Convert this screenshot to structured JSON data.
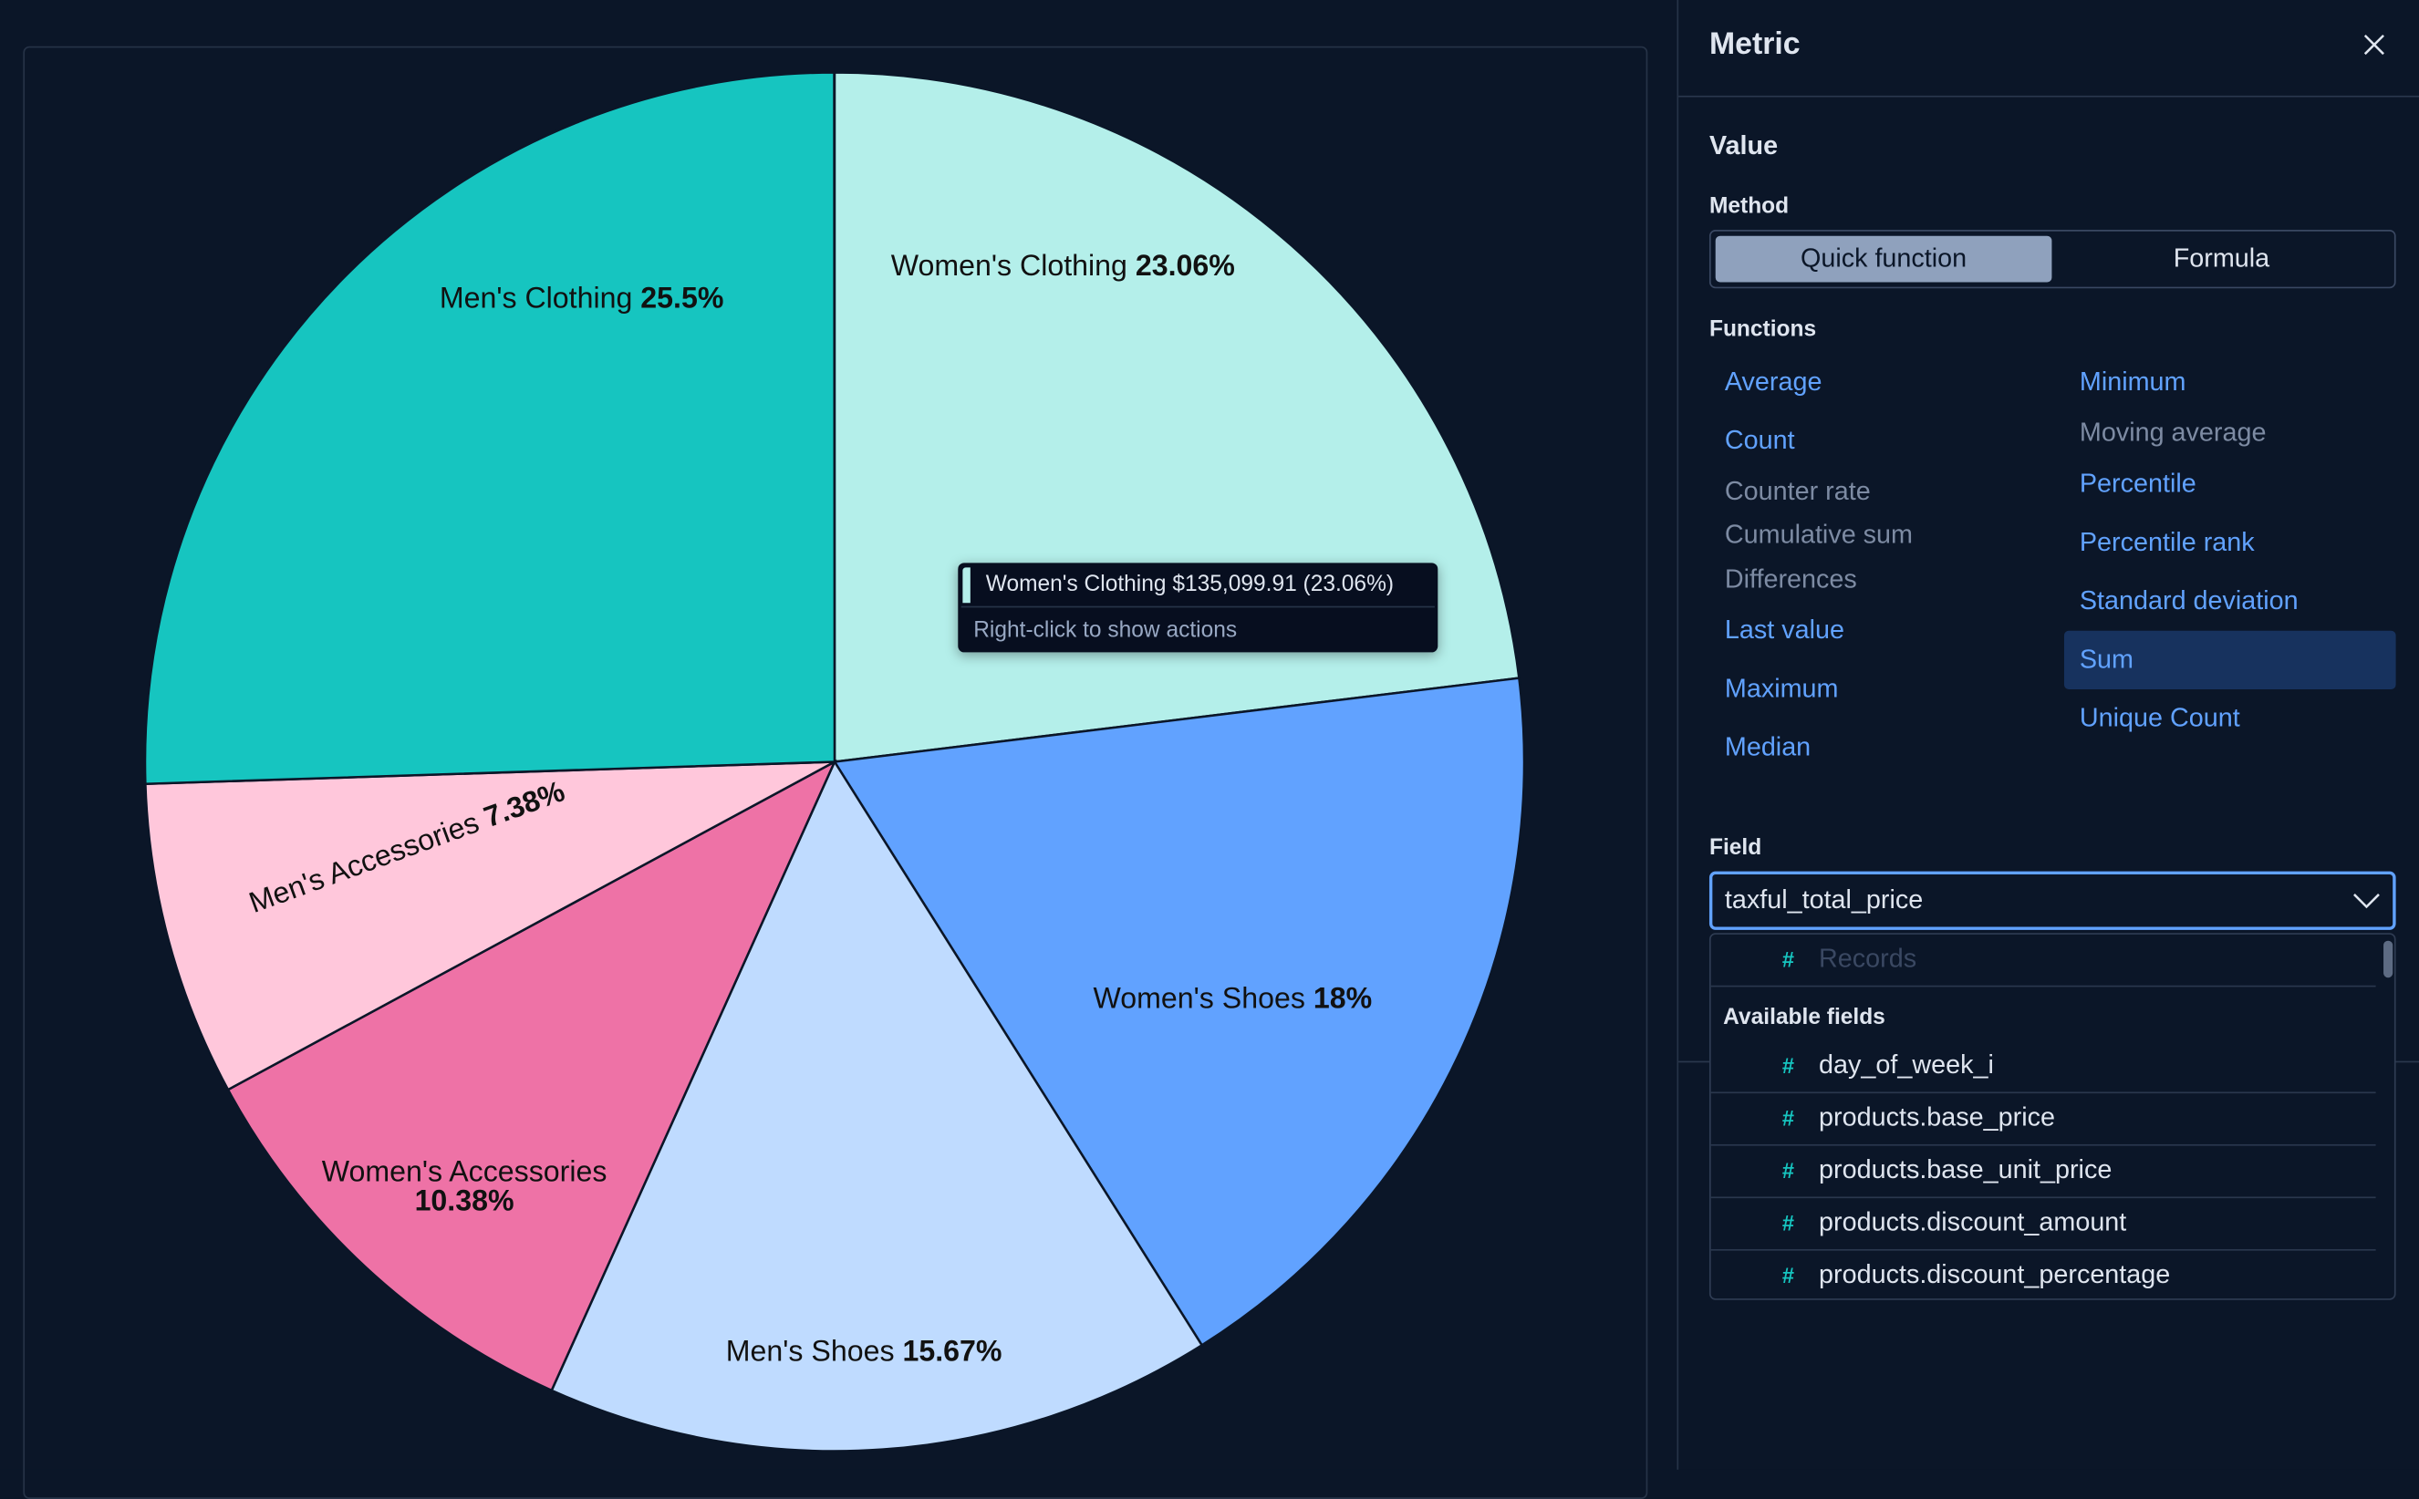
{
  "chart_data": {
    "type": "pie",
    "slices": [
      {
        "label": "Women's Clothing",
        "percent": 23.06,
        "color": "#b4efea"
      },
      {
        "label": "Women's Shoes",
        "percent": 18,
        "color": "#61a2ff"
      },
      {
        "label": "Men's Shoes",
        "percent": 15.67,
        "color": "#bfdbff"
      },
      {
        "label": "Women's Accessories",
        "percent": 10.38,
        "color": "#ee72a6"
      },
      {
        "label": "Men's Accessories",
        "percent": 7.38,
        "color": "#ffc7db"
      },
      {
        "label": "Men's Clothing",
        "percent": 25.5,
        "color": "#16c5c0"
      }
    ],
    "labels_display": [
      {
        "name": "Women's Clothing",
        "pct": "23.06%"
      },
      {
        "name": "Women's Shoes",
        "pct": "18%"
      },
      {
        "name": "Men's Shoes",
        "pct": "15.67%"
      },
      {
        "name": "Women's Accessories",
        "pct": "10.38%"
      },
      {
        "name": "Men's Accessories",
        "pct": "7.38%"
      },
      {
        "name": "Men's Clothing",
        "pct": "25.5%"
      }
    ],
    "start": "top",
    "direction": "clockwise"
  },
  "tooltip": {
    "title": "Women's Clothing  $135,099.91 (23.06%)",
    "hint": "Right-click to show actions"
  },
  "flyout": {
    "title": "Metric",
    "section": "Value",
    "method_label": "Method",
    "method_options": [
      "Quick function",
      "Formula"
    ],
    "method_selected": "Quick function",
    "functions_label": "Functions",
    "functions_left": [
      {
        "label": "Average",
        "enabled": true
      },
      {
        "label": "Count",
        "enabled": true
      },
      {
        "label": "Counter rate",
        "enabled": false
      },
      {
        "label": "Cumulative sum",
        "enabled": false
      },
      {
        "label": "Differences",
        "enabled": false
      },
      {
        "label": "Last value",
        "enabled": true
      },
      {
        "label": "Maximum",
        "enabled": true
      },
      {
        "label": "Median",
        "enabled": true
      }
    ],
    "functions_right": [
      {
        "label": "Minimum",
        "enabled": true
      },
      {
        "label": "Moving average",
        "enabled": false
      },
      {
        "label": "Percentile",
        "enabled": true
      },
      {
        "label": "Percentile rank",
        "enabled": true
      },
      {
        "label": "Standard deviation",
        "enabled": true
      },
      {
        "label": "Sum",
        "enabled": true,
        "selected": true
      },
      {
        "label": "Unique Count",
        "enabled": true
      }
    ],
    "field_label": "Field",
    "field_value": "taxful_total_price",
    "dropdown": {
      "disabled_option": "Records",
      "group_label": "Available fields",
      "options": [
        "day_of_week_i",
        "products.base_price",
        "products.base_unit_price",
        "products.discount_amount",
        "products.discount_percentage"
      ]
    }
  }
}
